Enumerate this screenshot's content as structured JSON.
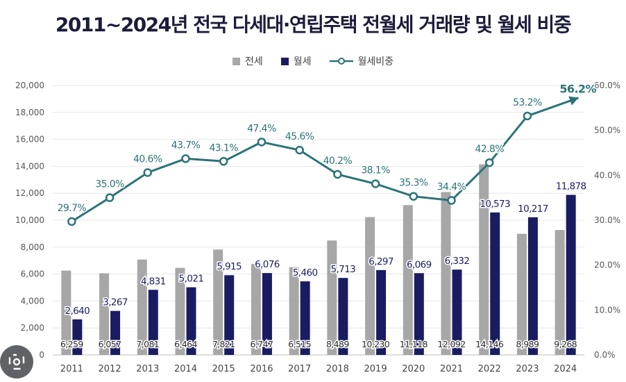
{
  "title": "2011~2024년 전국 다세대·연립주택 전월세 거래량 및 월세 비중",
  "legend": {
    "jeonse": "전세",
    "wolse": "월세",
    "ratio": "월세비중"
  },
  "colors": {
    "jeonse": "#a7a7a7",
    "wolse": "#1a1c62",
    "ratio": "#2b7378",
    "ratio_last": "#2b7378",
    "grid": "#e6e6e6",
    "axis_text": "#555555"
  },
  "chart_data": {
    "type": "bar",
    "title": "2011~2024년 전국 다세대·연립주택 전월세 거래량 및 월세 비중",
    "categories": [
      "2011",
      "2012",
      "2013",
      "2014",
      "2015",
      "2016",
      "2017",
      "2018",
      "2019",
      "2020",
      "2021",
      "2022",
      "2023",
      "2024"
    ],
    "series": [
      {
        "name": "전세",
        "type": "bar",
        "axis": "left",
        "values": [
          6259,
          6057,
          7081,
          6464,
          7821,
          6747,
          6515,
          8489,
          10230,
          11118,
          12092,
          14146,
          8989,
          9268
        ],
        "labels": [
          "6,259",
          "6,057",
          "7,081",
          "6,464",
          "7,821",
          "6,747",
          "6,515",
          "8,489",
          "10,230",
          "11,118",
          "12,092",
          "14,146",
          "8,989",
          "9,268"
        ]
      },
      {
        "name": "월세",
        "type": "bar",
        "axis": "left",
        "values": [
          2640,
          3267,
          4831,
          5021,
          5915,
          6076,
          5460,
          5713,
          6297,
          6069,
          6332,
          10573,
          10217,
          11878
        ],
        "labels": [
          "2,640",
          "3,267",
          "4,831",
          "5,021",
          "5,915",
          "6,076",
          "5,460",
          "5,713",
          "6,297",
          "6,069",
          "6,332",
          "10,573",
          "10,217",
          "11,878"
        ]
      },
      {
        "name": "월세비중",
        "type": "line",
        "axis": "right",
        "values": [
          29.7,
          35.0,
          40.6,
          43.7,
          43.1,
          47.4,
          45.6,
          40.2,
          38.1,
          35.3,
          34.4,
          42.8,
          53.2,
          56.2
        ],
        "labels": [
          "29.7%",
          "35.0%",
          "40.6%",
          "43.7%",
          "43.1%",
          "47.4%",
          "45.6%",
          "40.2%",
          "38.1%",
          "35.3%",
          "34.4%",
          "42.8%",
          "53.2%",
          "56.2%"
        ]
      }
    ],
    "y_left": {
      "min": 0,
      "max": 20000,
      "ticks": [
        "0",
        "2,000",
        "4,000",
        "6,000",
        "8,000",
        "10,000",
        "12,000",
        "14,000",
        "16,000",
        "18,000",
        "20,000"
      ]
    },
    "y_right": {
      "min": 0,
      "max": 60,
      "ticks": [
        "0.0%",
        "10.0%",
        "20.0%",
        "30.0%",
        "40.0%",
        "50.0%",
        "60.0%"
      ]
    },
    "grid": true,
    "legend_position": "top-center"
  }
}
